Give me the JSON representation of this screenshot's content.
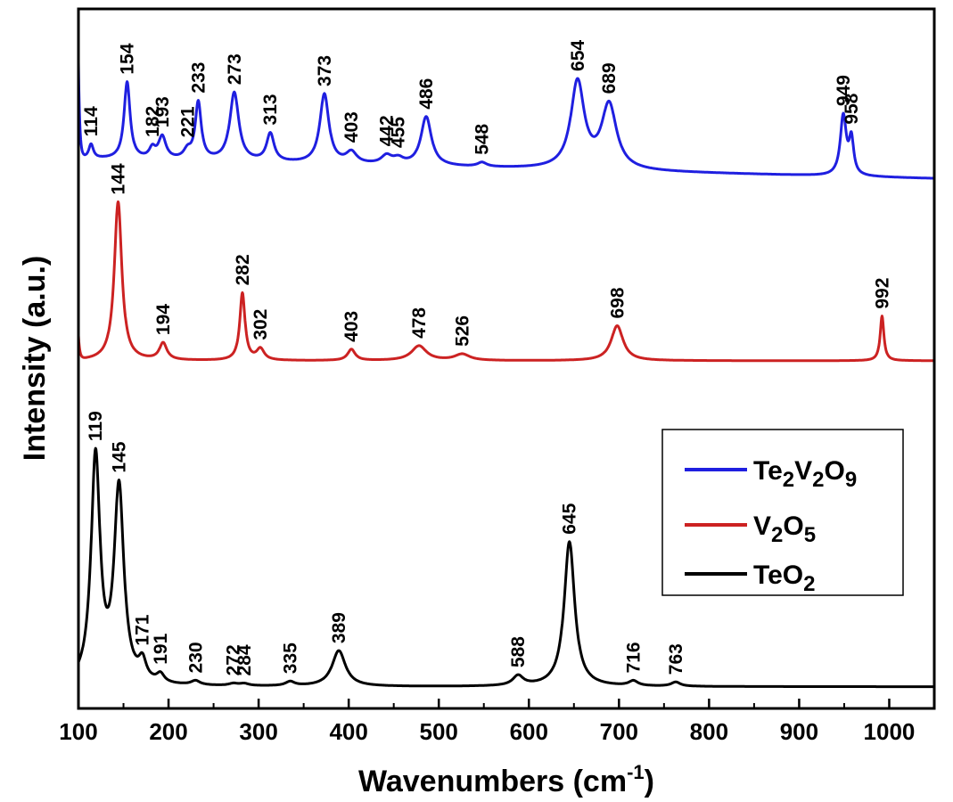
{
  "chart_data": {
    "type": "line",
    "xlabel": "Wavenumbers (cm",
    "xlabel_sup": "-1",
    "xlabel_end": ")",
    "ylabel": "Intensity (a.u.)",
    "xlim": [
      100,
      1050
    ],
    "ylim": [
      0,
      1
    ],
    "x_ticks": [
      100,
      200,
      300,
      400,
      500,
      600,
      700,
      800,
      900,
      1000
    ],
    "x_tick_labels": [
      "100",
      "200",
      "300",
      "400",
      "500",
      "600",
      "700",
      "800",
      "900",
      "1000"
    ],
    "y_ticks_shown": false,
    "grid": false,
    "legend_position": "bottom-right",
    "series": [
      {
        "id": "te2v2o9",
        "name": "Te2V2O9",
        "name_parts": [
          [
            "Te",
            false
          ],
          [
            "2",
            true
          ],
          [
            "V",
            false
          ],
          [
            "2",
            true
          ],
          [
            "O",
            false
          ],
          [
            "9",
            true
          ]
        ],
        "color": "#1f1fe0",
        "baseline": 0.786,
        "slope": -3e-05,
        "start_spike": 0.135,
        "peaks": [
          [
            114,
            0.02,
            3
          ],
          [
            154,
            0.11,
            4
          ],
          [
            182,
            0.014,
            4
          ],
          [
            193,
            0.032,
            5
          ],
          [
            221,
            0.012,
            5
          ],
          [
            233,
            0.082,
            4
          ],
          [
            273,
            0.098,
            6
          ],
          [
            313,
            0.04,
            5
          ],
          [
            373,
            0.099,
            6
          ],
          [
            403,
            0.016,
            7
          ],
          [
            442,
            0.012,
            7
          ],
          [
            455,
            0.008,
            7
          ],
          [
            486,
            0.07,
            7
          ],
          [
            548,
            0.006,
            6
          ],
          [
            654,
            0.124,
            9
          ],
          [
            689,
            0.092,
            10
          ],
          [
            949,
            0.085,
            4
          ],
          [
            958,
            0.05,
            3
          ]
        ],
        "labels": [
          114,
          154,
          182,
          193,
          221,
          233,
          273,
          313,
          373,
          403,
          442,
          455,
          486,
          548,
          654,
          689,
          949,
          958
        ]
      },
      {
        "id": "v2o5",
        "name": "V2O5",
        "name_parts": [
          [
            "V",
            false
          ],
          [
            "2",
            true
          ],
          [
            "O",
            false
          ],
          [
            "5",
            true
          ]
        ],
        "color": "#cc2222",
        "baseline": 0.497,
        "slope": 0,
        "start_spike": 0.033,
        "peaks": [
          [
            144,
            0.227,
            5
          ],
          [
            194,
            0.024,
            5
          ],
          [
            282,
            0.096,
            3.5
          ],
          [
            302,
            0.016,
            5
          ],
          [
            403,
            0.016,
            5
          ],
          [
            478,
            0.021,
            10
          ],
          [
            526,
            0.009,
            10
          ],
          [
            698,
            0.05,
            8
          ],
          [
            992,
            0.064,
            2.5
          ]
        ],
        "labels": [
          144,
          194,
          282,
          302,
          403,
          478,
          526,
          698,
          992
        ]
      },
      {
        "id": "teo2",
        "name": "TeO2",
        "name_parts": [
          [
            "TeO",
            false
          ],
          [
            "2",
            true
          ]
        ],
        "color": "#000000",
        "baseline": 0.031,
        "slope": 0,
        "start_spike": 0,
        "peaks": [
          [
            119,
            0.324,
            6
          ],
          [
            145,
            0.278,
            6.5
          ],
          [
            171,
            0.027,
            5
          ],
          [
            191,
            0.012,
            5
          ],
          [
            230,
            0.006,
            6
          ],
          [
            272,
            0.003,
            6
          ],
          [
            284,
            0.003,
            6
          ],
          [
            335,
            0.006,
            6
          ],
          [
            389,
            0.051,
            9
          ],
          [
            588,
            0.014,
            7
          ],
          [
            645,
            0.207,
            7
          ],
          [
            716,
            0.007,
            6
          ],
          [
            763,
            0.006,
            6
          ]
        ],
        "labels": [
          119,
          145,
          171,
          191,
          230,
          272,
          284,
          335,
          389,
          588,
          645,
          716,
          763
        ]
      }
    ]
  }
}
